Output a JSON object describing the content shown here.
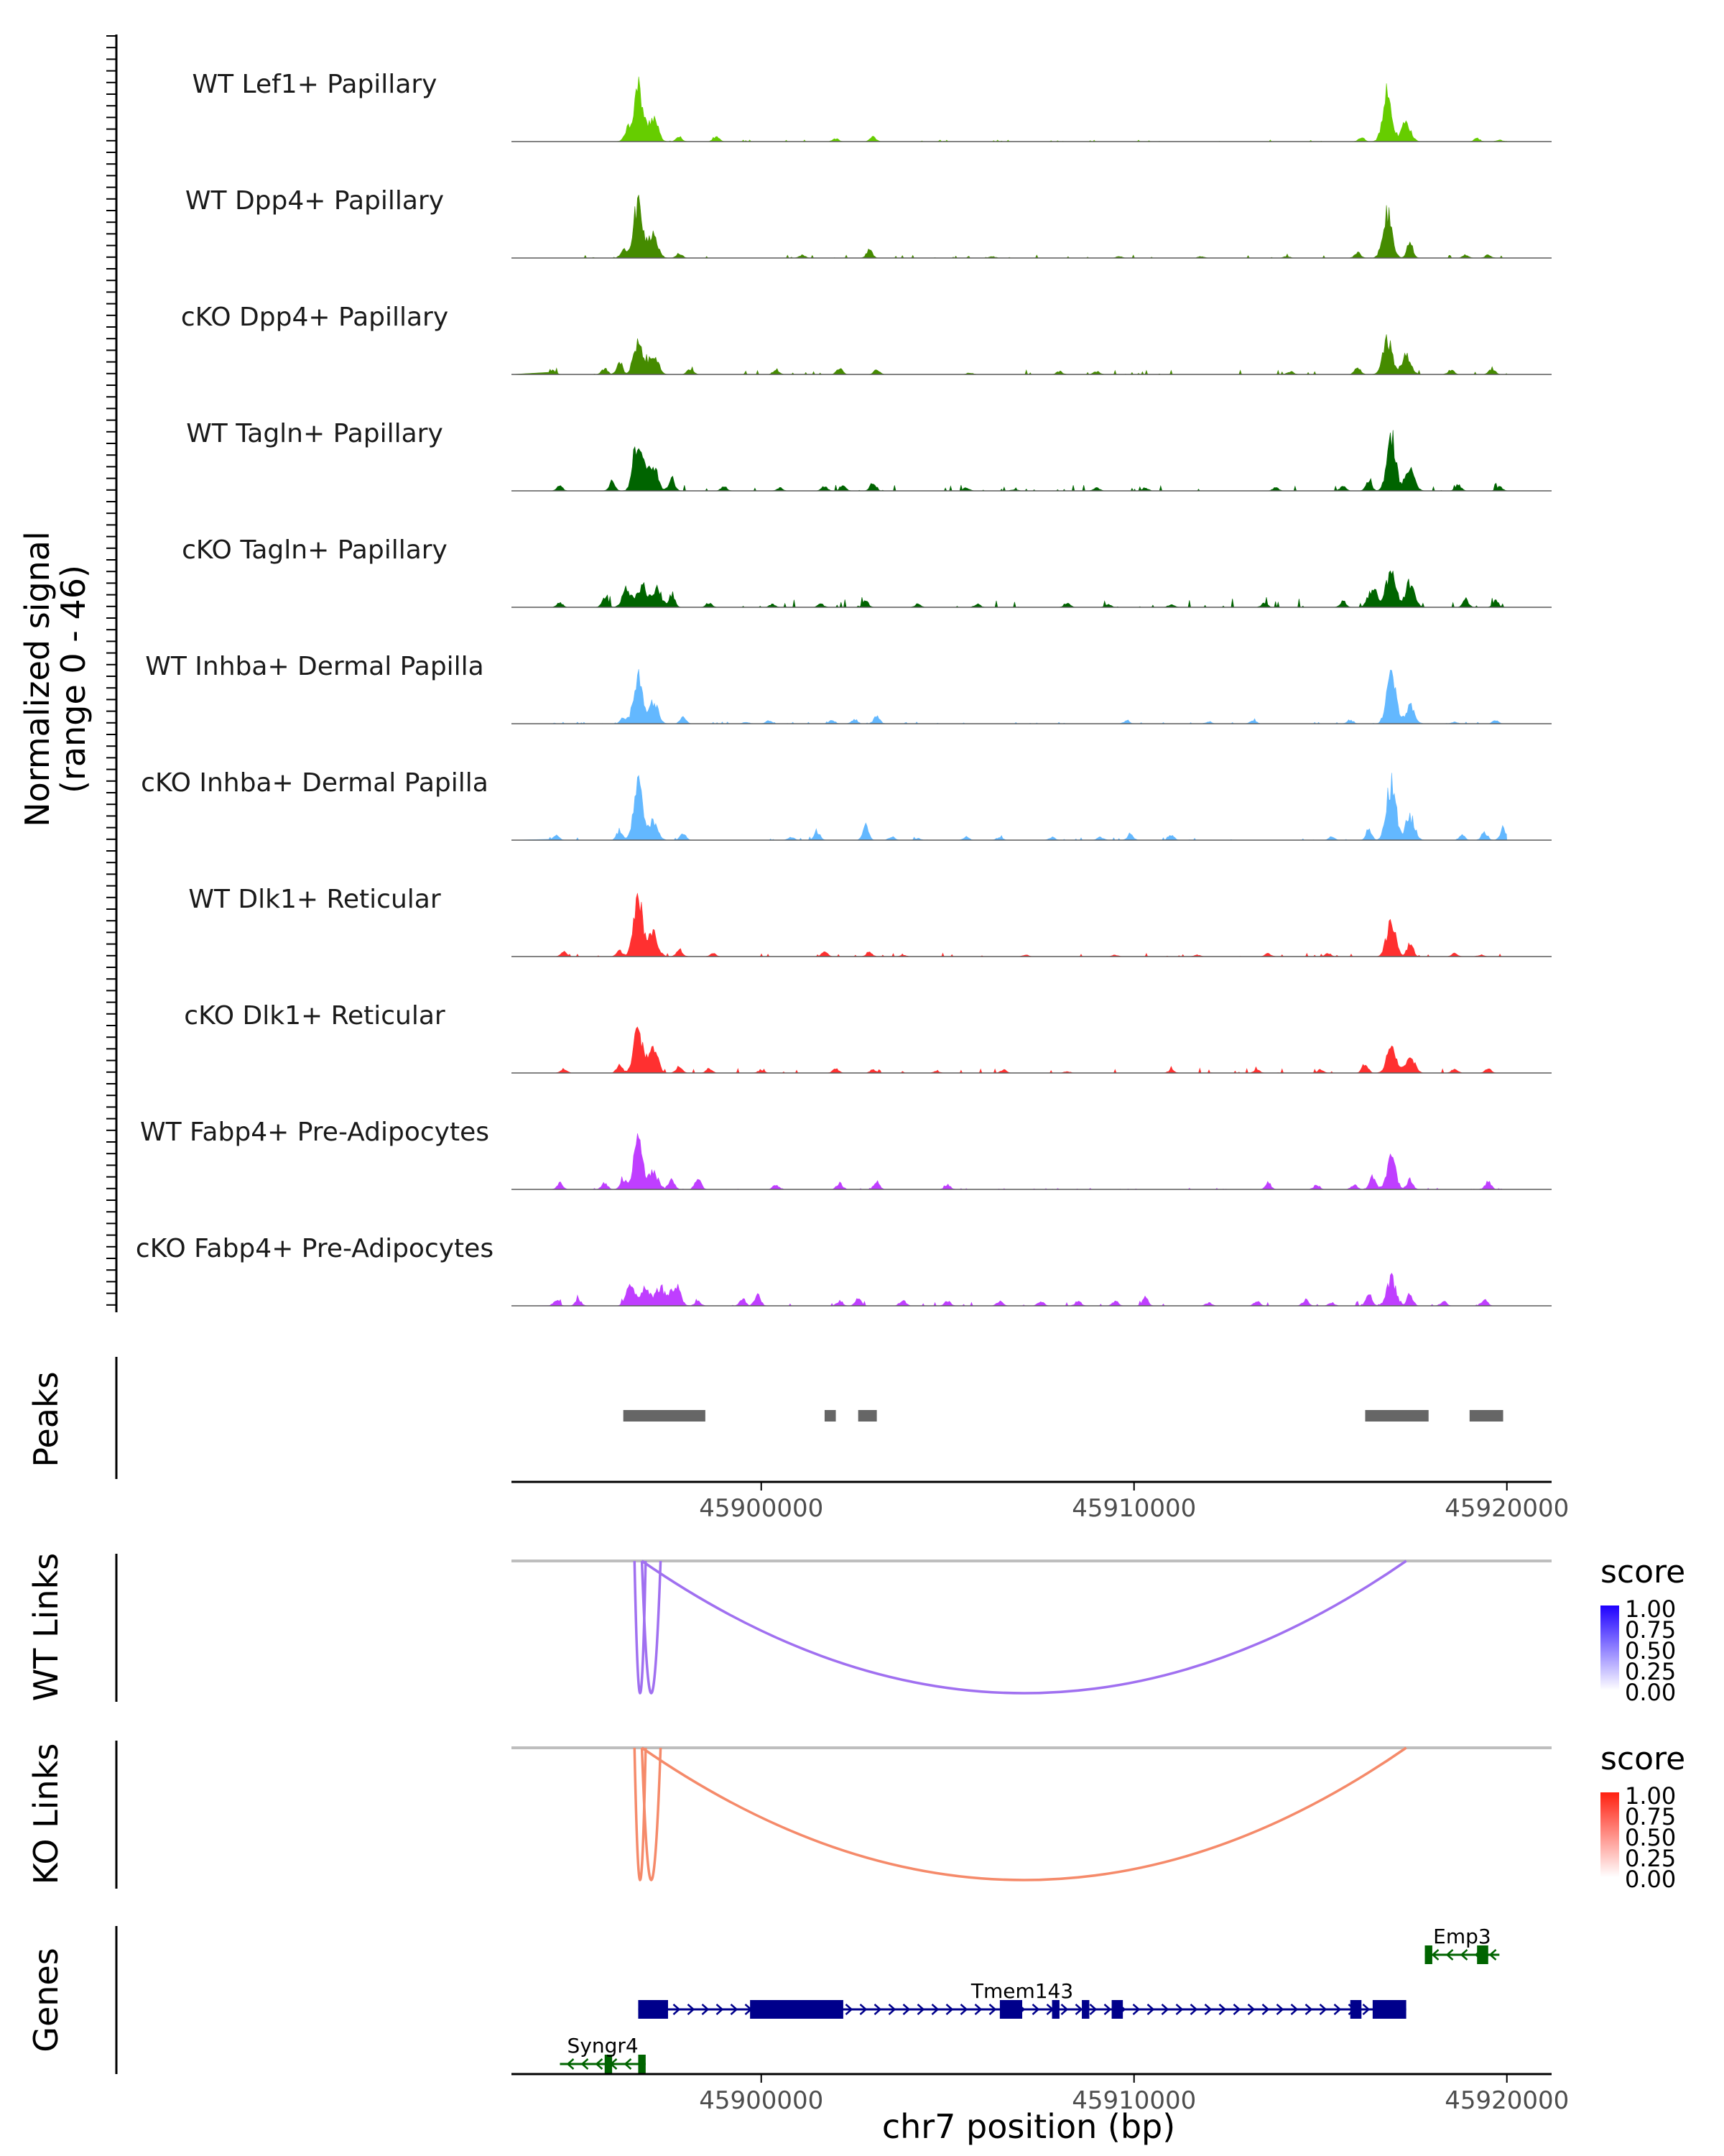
{
  "chart_data": {
    "type": "area",
    "title": "",
    "xlabel": "chr7 position (bp)",
    "ylabel": "Normalized signal\n(range 0 - 46)",
    "ylabel_lines": [
      "Normalized signal",
      "(range 0 - 46)"
    ],
    "xlim": [
      45893300,
      45921200
    ],
    "x_ticks": [
      45900000,
      45910000,
      45920000
    ],
    "x_tick_labels": [
      "45900000",
      "45910000",
      "45920000"
    ],
    "ylim": [
      0,
      46
    ],
    "tracks": [
      {
        "name": "WT Lef1+ Papillary",
        "color": "#66CD00",
        "peaks": [
          [
            45896700,
            35
          ],
          [
            45897100,
            16
          ],
          [
            45896400,
            8
          ],
          [
            45898800,
            3
          ],
          [
            45897800,
            3
          ],
          [
            45902000,
            2
          ],
          [
            45903000,
            3
          ],
          [
            45916100,
            3
          ],
          [
            45916800,
            32
          ],
          [
            45917300,
            12
          ],
          [
            45919200,
            2
          ],
          [
            45919800,
            1
          ]
        ],
        "noise": 0.3
      },
      {
        "name": "WT Dpp4+ Papillary",
        "color": "#458B00",
        "peaks": [
          [
            45896700,
            36
          ],
          [
            45897100,
            16
          ],
          [
            45896300,
            5
          ],
          [
            45897800,
            3
          ],
          [
            45901100,
            2
          ],
          [
            45902900,
            5
          ],
          [
            45906200,
            1
          ],
          [
            45909600,
            1
          ],
          [
            45911800,
            1
          ],
          [
            45914100,
            1
          ],
          [
            45916000,
            4
          ],
          [
            45916800,
            30
          ],
          [
            45917400,
            10
          ],
          [
            45918900,
            2
          ],
          [
            45919500,
            2
          ]
        ],
        "noise": 0.5
      },
      {
        "name": "cKO Dpp4+ Papillary",
        "color": "#458B00",
        "peaks": [
          [
            45894400,
            3
          ],
          [
            45896700,
            22
          ],
          [
            45897100,
            13
          ],
          [
            45895800,
            4
          ],
          [
            45896200,
            8
          ],
          [
            45898100,
            4
          ],
          [
            45900400,
            3
          ],
          [
            45902100,
            4
          ],
          [
            45903100,
            3
          ],
          [
            45905600,
            1
          ],
          [
            45908000,
            2
          ],
          [
            45909000,
            2
          ],
          [
            45914200,
            2
          ],
          [
            45916000,
            5
          ],
          [
            45916800,
            22
          ],
          [
            45917300,
            12
          ],
          [
            45918500,
            3
          ],
          [
            45919600,
            4
          ]
        ],
        "noise": 0.8
      },
      {
        "name": "WT Tagln+ Papillary",
        "color": "#006400",
        "peaks": [
          [
            45894600,
            3
          ],
          [
            45896700,
            32
          ],
          [
            45897100,
            18
          ],
          [
            45896000,
            6
          ],
          [
            45897600,
            8
          ],
          [
            45899000,
            3
          ],
          [
            45900500,
            2
          ],
          [
            45901700,
            3
          ],
          [
            45902200,
            3
          ],
          [
            45903000,
            6
          ],
          [
            45905500,
            2
          ],
          [
            45906800,
            1
          ],
          [
            45909000,
            2
          ],
          [
            45910300,
            2
          ],
          [
            45913800,
            2
          ],
          [
            45915600,
            3
          ],
          [
            45916900,
            34
          ],
          [
            45917400,
            15
          ],
          [
            45916300,
            6
          ],
          [
            45918700,
            4
          ],
          [
            45919800,
            3
          ]
        ],
        "noise": 1.0
      },
      {
        "name": "cKO Tagln+ Papillary",
        "color": "#006400",
        "peaks": [
          [
            45894600,
            3
          ],
          [
            45896400,
            12
          ],
          [
            45896800,
            14
          ],
          [
            45897200,
            12
          ],
          [
            45897600,
            9
          ],
          [
            45895800,
            7
          ],
          [
            45898600,
            3
          ],
          [
            45900300,
            2
          ],
          [
            45901600,
            2
          ],
          [
            45902800,
            4
          ],
          [
            45904200,
            2
          ],
          [
            45905800,
            2
          ],
          [
            45908200,
            3
          ],
          [
            45909300,
            2
          ],
          [
            45911000,
            2
          ],
          [
            45913500,
            3
          ],
          [
            45915600,
            4
          ],
          [
            45916900,
            26
          ],
          [
            45917400,
            16
          ],
          [
            45916400,
            12
          ],
          [
            45918900,
            5
          ],
          [
            45919700,
            4
          ]
        ],
        "noise": 1.5
      },
      {
        "name": "WT Inhba+ Dermal Papilla",
        "color": "#63B8FF",
        "peaks": [
          [
            45896700,
            30
          ],
          [
            45897100,
            15
          ],
          [
            45896300,
            4
          ],
          [
            45897900,
            4
          ],
          [
            45899600,
            1
          ],
          [
            45900200,
            2
          ],
          [
            45901900,
            2
          ],
          [
            45903100,
            5
          ],
          [
            45902500,
            3
          ],
          [
            45909800,
            2
          ],
          [
            45912000,
            1
          ],
          [
            45913200,
            2
          ],
          [
            45915800,
            2
          ],
          [
            45916900,
            32
          ],
          [
            45917400,
            11
          ],
          [
            45918600,
            1
          ],
          [
            45919700,
            2
          ]
        ],
        "noise": 0.3
      },
      {
        "name": "cKO Inhba+ Dermal Papilla",
        "color": "#63B8FF",
        "peaks": [
          [
            45894500,
            3
          ],
          [
            45896700,
            36
          ],
          [
            45897100,
            12
          ],
          [
            45896200,
            6
          ],
          [
            45897900,
            4
          ],
          [
            45900800,
            2
          ],
          [
            45901500,
            5
          ],
          [
            45902800,
            9
          ],
          [
            45903500,
            2
          ],
          [
            45904200,
            1
          ],
          [
            45905500,
            2
          ],
          [
            45906400,
            2
          ],
          [
            45907800,
            2
          ],
          [
            45909100,
            2
          ],
          [
            45909900,
            4
          ],
          [
            45911000,
            3
          ],
          [
            45915300,
            2
          ],
          [
            45916300,
            6
          ],
          [
            45916900,
            38
          ],
          [
            45917400,
            15
          ],
          [
            45918800,
            3
          ],
          [
            45919400,
            5
          ],
          [
            45919900,
            8
          ]
        ],
        "noise": 0.5
      },
      {
        "name": "WT Dlk1+ Reticular",
        "color": "#FF3030",
        "peaks": [
          [
            45894700,
            3
          ],
          [
            45896700,
            36
          ],
          [
            45897100,
            16
          ],
          [
            45896200,
            4
          ],
          [
            45897800,
            4
          ],
          [
            45898700,
            2
          ],
          [
            45901700,
            3
          ],
          [
            45902900,
            3
          ],
          [
            45903800,
            1
          ],
          [
            45907100,
            1
          ],
          [
            45909500,
            1
          ],
          [
            45911700,
            1
          ],
          [
            45913600,
            2
          ],
          [
            45915200,
            2
          ],
          [
            45916900,
            24
          ],
          [
            45917400,
            8
          ],
          [
            45918600,
            2
          ],
          [
            45919300,
            1
          ]
        ],
        "noise": 0.6
      },
      {
        "name": "cKO Dlk1+ Reticular",
        "color": "#FF3030",
        "peaks": [
          [
            45894700,
            3
          ],
          [
            45896700,
            28
          ],
          [
            45897100,
            17
          ],
          [
            45896200,
            5
          ],
          [
            45897800,
            5
          ],
          [
            45898600,
            3
          ],
          [
            45900000,
            2
          ],
          [
            45902000,
            3
          ],
          [
            45903000,
            2
          ],
          [
            45904700,
            1
          ],
          [
            45906500,
            2
          ],
          [
            45908200,
            1
          ],
          [
            45911000,
            2
          ],
          [
            45913300,
            2
          ],
          [
            45915000,
            2
          ],
          [
            45916200,
            6
          ],
          [
            45916900,
            18
          ],
          [
            45917400,
            11
          ],
          [
            45918600,
            3
          ],
          [
            45919500,
            3
          ]
        ],
        "noise": 0.8
      },
      {
        "name": "WT Fabp4+ Pre-Adipocytes",
        "color": "#BF3EFF",
        "peaks": [
          [
            45894600,
            4
          ],
          [
            45895800,
            4
          ],
          [
            45896300,
            7
          ],
          [
            45896700,
            31
          ],
          [
            45897100,
            12
          ],
          [
            45897600,
            6
          ],
          [
            45898300,
            8
          ],
          [
            45900400,
            3
          ],
          [
            45902100,
            4
          ],
          [
            45903100,
            5
          ],
          [
            45905000,
            3
          ],
          [
            45913600,
            4
          ],
          [
            45914900,
            3
          ],
          [
            45915900,
            3
          ],
          [
            45916400,
            8
          ],
          [
            45916900,
            19
          ],
          [
            45917400,
            6
          ],
          [
            45919500,
            5
          ]
        ],
        "noise": 0.2
      },
      {
        "name": "cKO Fabp4+ Pre-Adipocytes",
        "color": "#BF3EFF",
        "peaks": [
          [
            45894500,
            4
          ],
          [
            45895100,
            4
          ],
          [
            45896500,
            12
          ],
          [
            45896900,
            12
          ],
          [
            45897300,
            12
          ],
          [
            45897700,
            14
          ],
          [
            45898300,
            3
          ],
          [
            45899500,
            4
          ],
          [
            45899900,
            8
          ],
          [
            45902100,
            3
          ],
          [
            45902600,
            5
          ],
          [
            45903800,
            4
          ],
          [
            45905000,
            3
          ],
          [
            45906400,
            3
          ],
          [
            45907500,
            3
          ],
          [
            45908500,
            3
          ],
          [
            45909500,
            3
          ],
          [
            45910300,
            5
          ],
          [
            45912000,
            2
          ],
          [
            45913300,
            3
          ],
          [
            45914600,
            4
          ],
          [
            45915300,
            2
          ],
          [
            45916300,
            8
          ],
          [
            45916900,
            17
          ],
          [
            45917400,
            8
          ],
          [
            45918300,
            3
          ],
          [
            45919400,
            4
          ]
        ],
        "noise": 0.8
      }
    ],
    "peaks_track": {
      "label": "Peaks",
      "color": "#666666",
      "regions": [
        [
          45896300,
          45898500
        ],
        [
          45901700,
          45902000
        ],
        [
          45902600,
          45903100
        ],
        [
          45916200,
          45917900
        ],
        [
          45919000,
          45919900
        ]
      ]
    },
    "links": [
      {
        "label": "WT Links",
        "legend_title": "score",
        "color_low": "#FFFFFF",
        "color_high": "#1E00FF",
        "line_color": "#A070F0",
        "arcs": [
          [
            45896600,
            45896900
          ],
          [
            45896800,
            45897300
          ],
          [
            45896800,
            45917300
          ]
        ],
        "legend_ticks": [
          "1.00",
          "0.75",
          "0.50",
          "0.25",
          "0.00"
        ]
      },
      {
        "label": "KO Links",
        "legend_title": "score",
        "color_low": "#FFFFFF",
        "color_high": "#FF2010",
        "line_color": "#F58A6A",
        "arcs": [
          [
            45896600,
            45896900
          ],
          [
            45896800,
            45897300
          ],
          [
            45896800,
            45917300
          ]
        ],
        "legend_ticks": [
          "1.00",
          "0.75",
          "0.50",
          "0.25",
          "0.00"
        ]
      }
    ],
    "genes": {
      "label": "Genes",
      "items": [
        {
          "name": "Tmem143",
          "strand": "+",
          "color": "#00008B",
          "start": 45896700,
          "end": 45917300,
          "exons": [
            [
              45896700,
              45897500
            ],
            [
              45899700,
              45902200
            ],
            [
              45906400,
              45907000
            ],
            [
              45907800,
              45908000
            ],
            [
              45908600,
              45908800
            ],
            [
              45909400,
              45909700
            ],
            [
              45915800,
              45916100
            ],
            [
              45916400,
              45917300
            ]
          ]
        },
        {
          "name": "Syngr4",
          "strand": "-",
          "color": "#006400",
          "start": 45894600,
          "end": 45896900,
          "exons": [
            [
              45895800,
              45896000
            ],
            [
              45896700,
              45896900
            ]
          ]
        },
        {
          "name": "Emp3",
          "strand": "-",
          "color": "#006400",
          "start": 45917800,
          "end": 45919800,
          "exons": [
            [
              45917800,
              45918000
            ],
            [
              45919200,
              45919500
            ]
          ]
        }
      ]
    }
  }
}
